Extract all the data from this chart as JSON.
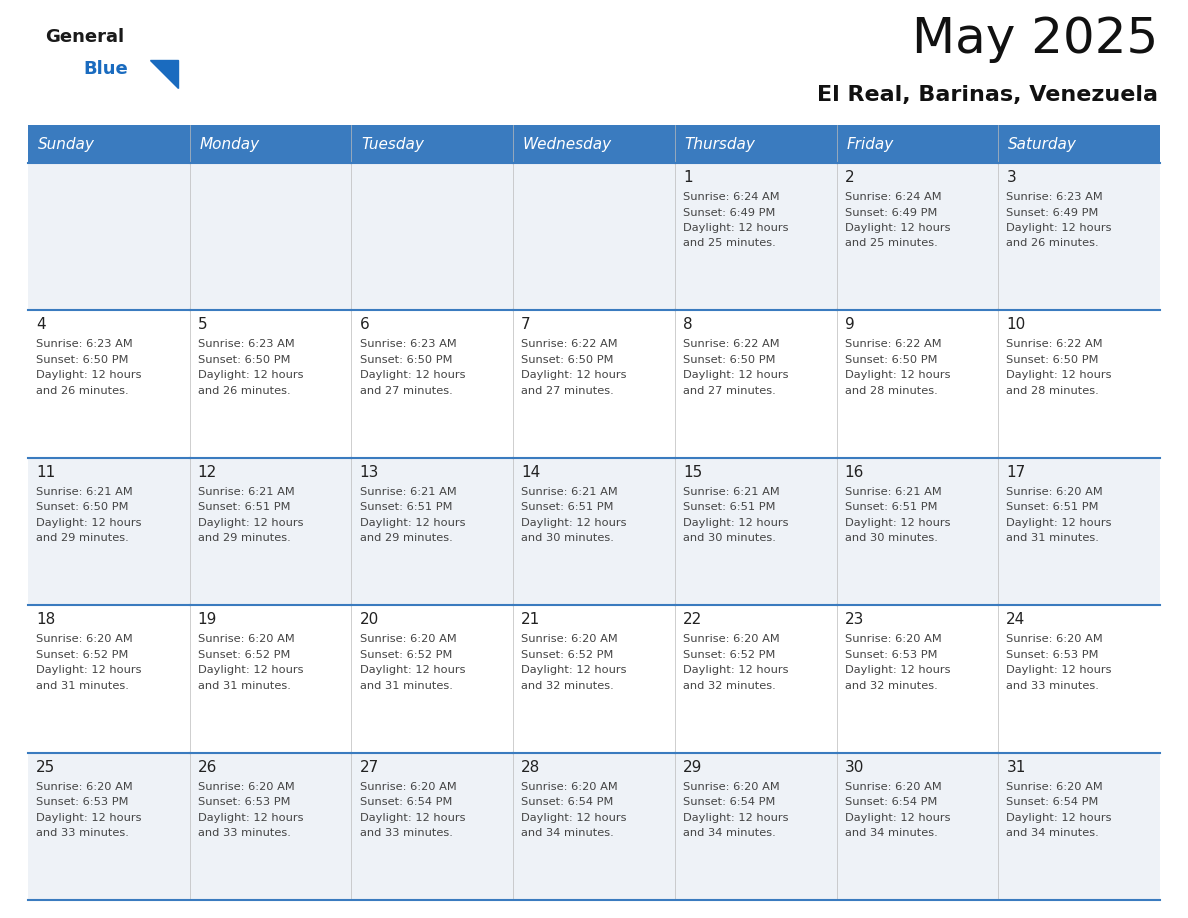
{
  "title": "May 2025",
  "subtitle": "El Real, Barinas, Venezuela",
  "header_bg_color": "#3a7bbf",
  "header_text_color": "#ffffff",
  "cell_bg_even": "#eef2f7",
  "cell_bg_odd": "#ffffff",
  "day_number_color": "#222222",
  "cell_text_color": "#444444",
  "line_color": "#3a7bbf",
  "days_of_week": [
    "Sunday",
    "Monday",
    "Tuesday",
    "Wednesday",
    "Thursday",
    "Friday",
    "Saturday"
  ],
  "weeks": [
    [
      {
        "day": "",
        "sunrise": "",
        "sunset": "",
        "daylight": ""
      },
      {
        "day": "",
        "sunrise": "",
        "sunset": "",
        "daylight": ""
      },
      {
        "day": "",
        "sunrise": "",
        "sunset": "",
        "daylight": ""
      },
      {
        "day": "",
        "sunrise": "",
        "sunset": "",
        "daylight": ""
      },
      {
        "day": "1",
        "sunrise": "6:24 AM",
        "sunset": "6:49 PM",
        "daylight": "12 hours and 25 minutes."
      },
      {
        "day": "2",
        "sunrise": "6:24 AM",
        "sunset": "6:49 PM",
        "daylight": "12 hours and 25 minutes."
      },
      {
        "day": "3",
        "sunrise": "6:23 AM",
        "sunset": "6:49 PM",
        "daylight": "12 hours and 26 minutes."
      }
    ],
    [
      {
        "day": "4",
        "sunrise": "6:23 AM",
        "sunset": "6:50 PM",
        "daylight": "12 hours and 26 minutes."
      },
      {
        "day": "5",
        "sunrise": "6:23 AM",
        "sunset": "6:50 PM",
        "daylight": "12 hours and 26 minutes."
      },
      {
        "day": "6",
        "sunrise": "6:23 AM",
        "sunset": "6:50 PM",
        "daylight": "12 hours and 27 minutes."
      },
      {
        "day": "7",
        "sunrise": "6:22 AM",
        "sunset": "6:50 PM",
        "daylight": "12 hours and 27 minutes."
      },
      {
        "day": "8",
        "sunrise": "6:22 AM",
        "sunset": "6:50 PM",
        "daylight": "12 hours and 27 minutes."
      },
      {
        "day": "9",
        "sunrise": "6:22 AM",
        "sunset": "6:50 PM",
        "daylight": "12 hours and 28 minutes."
      },
      {
        "day": "10",
        "sunrise": "6:22 AM",
        "sunset": "6:50 PM",
        "daylight": "12 hours and 28 minutes."
      }
    ],
    [
      {
        "day": "11",
        "sunrise": "6:21 AM",
        "sunset": "6:50 PM",
        "daylight": "12 hours and 29 minutes."
      },
      {
        "day": "12",
        "sunrise": "6:21 AM",
        "sunset": "6:51 PM",
        "daylight": "12 hours and 29 minutes."
      },
      {
        "day": "13",
        "sunrise": "6:21 AM",
        "sunset": "6:51 PM",
        "daylight": "12 hours and 29 minutes."
      },
      {
        "day": "14",
        "sunrise": "6:21 AM",
        "sunset": "6:51 PM",
        "daylight": "12 hours and 30 minutes."
      },
      {
        "day": "15",
        "sunrise": "6:21 AM",
        "sunset": "6:51 PM",
        "daylight": "12 hours and 30 minutes."
      },
      {
        "day": "16",
        "sunrise": "6:21 AM",
        "sunset": "6:51 PM",
        "daylight": "12 hours and 30 minutes."
      },
      {
        "day": "17",
        "sunrise": "6:20 AM",
        "sunset": "6:51 PM",
        "daylight": "12 hours and 31 minutes."
      }
    ],
    [
      {
        "day": "18",
        "sunrise": "6:20 AM",
        "sunset": "6:52 PM",
        "daylight": "12 hours and 31 minutes."
      },
      {
        "day": "19",
        "sunrise": "6:20 AM",
        "sunset": "6:52 PM",
        "daylight": "12 hours and 31 minutes."
      },
      {
        "day": "20",
        "sunrise": "6:20 AM",
        "sunset": "6:52 PM",
        "daylight": "12 hours and 31 minutes."
      },
      {
        "day": "21",
        "sunrise": "6:20 AM",
        "sunset": "6:52 PM",
        "daylight": "12 hours and 32 minutes."
      },
      {
        "day": "22",
        "sunrise": "6:20 AM",
        "sunset": "6:52 PM",
        "daylight": "12 hours and 32 minutes."
      },
      {
        "day": "23",
        "sunrise": "6:20 AM",
        "sunset": "6:53 PM",
        "daylight": "12 hours and 32 minutes."
      },
      {
        "day": "24",
        "sunrise": "6:20 AM",
        "sunset": "6:53 PM",
        "daylight": "12 hours and 33 minutes."
      }
    ],
    [
      {
        "day": "25",
        "sunrise": "6:20 AM",
        "sunset": "6:53 PM",
        "daylight": "12 hours and 33 minutes."
      },
      {
        "day": "26",
        "sunrise": "6:20 AM",
        "sunset": "6:53 PM",
        "daylight": "12 hours and 33 minutes."
      },
      {
        "day": "27",
        "sunrise": "6:20 AM",
        "sunset": "6:54 PM",
        "daylight": "12 hours and 33 minutes."
      },
      {
        "day": "28",
        "sunrise": "6:20 AM",
        "sunset": "6:54 PM",
        "daylight": "12 hours and 34 minutes."
      },
      {
        "day": "29",
        "sunrise": "6:20 AM",
        "sunset": "6:54 PM",
        "daylight": "12 hours and 34 minutes."
      },
      {
        "day": "30",
        "sunrise": "6:20 AM",
        "sunset": "6:54 PM",
        "daylight": "12 hours and 34 minutes."
      },
      {
        "day": "31",
        "sunrise": "6:20 AM",
        "sunset": "6:54 PM",
        "daylight": "12 hours and 34 minutes."
      }
    ]
  ],
  "logo_general_color": "#1a1a1a",
  "logo_blue_color": "#1a6bbf",
  "logo_triangle_color": "#1a6bbf",
  "title_fontsize": 36,
  "subtitle_fontsize": 16,
  "header_fontsize": 11,
  "day_num_fontsize": 11,
  "cell_text_fontsize": 8.2
}
